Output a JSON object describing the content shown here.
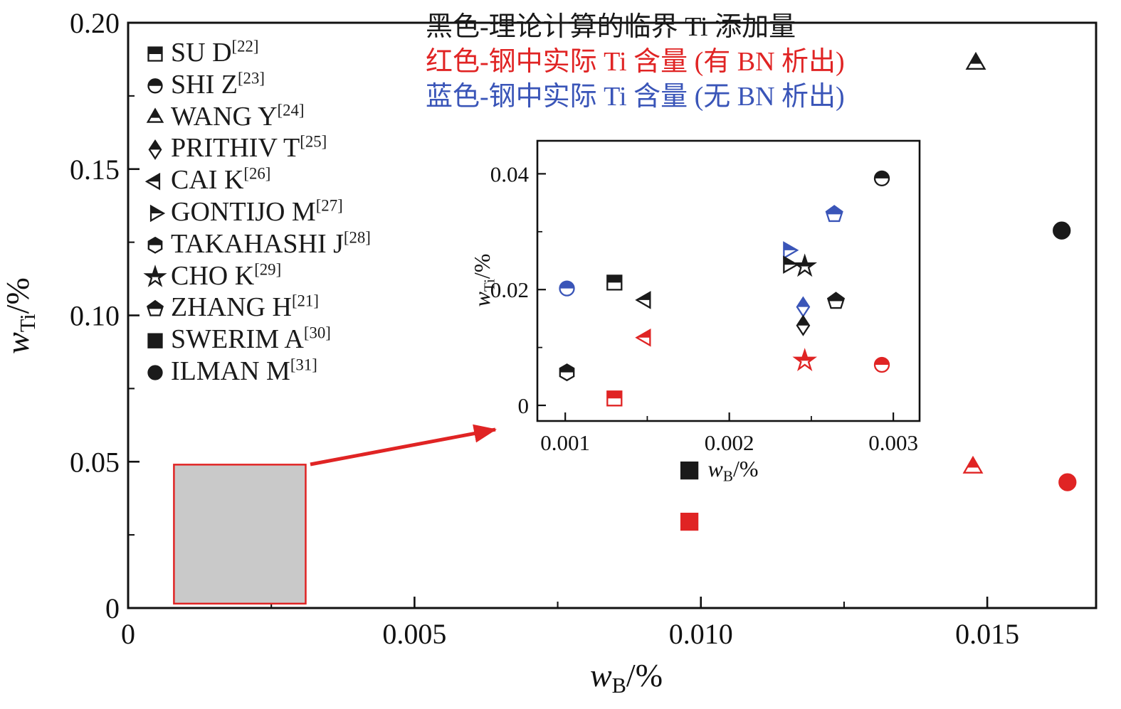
{
  "annotations": [
    {
      "text": "黑色-理论计算的临界 Ti 添加量",
      "color": "#1a1a1a"
    },
    {
      "text": "红色-钢中实际 Ti 含量 (有 BN 析出)",
      "color": "#e02424"
    },
    {
      "text": "蓝色-钢中实际 Ti 含量 (无 BN 析出)",
      "color": "#3a55b8"
    }
  ],
  "legend": {
    "items": [
      {
        "label": "SU D",
        "ref": "[22]",
        "shape": "square",
        "fill": "half"
      },
      {
        "label": "SHI Z",
        "ref": "[23]",
        "shape": "circle",
        "fill": "half"
      },
      {
        "label": "WANG Y",
        "ref": "[24]",
        "shape": "triangle-up",
        "fill": "half"
      },
      {
        "label": "PRITHIV T",
        "ref": "[25]",
        "shape": "diamond",
        "fill": "half"
      },
      {
        "label": "CAI K",
        "ref": "[26]",
        "shape": "triangle-left",
        "fill": "half"
      },
      {
        "label": "GONTIJO M",
        "ref": "[27]",
        "shape": "triangle-right",
        "fill": "half"
      },
      {
        "label": "TAKAHASHI J",
        "ref": "[28]",
        "shape": "hexagon",
        "fill": "half"
      },
      {
        "label": "CHO K",
        "ref": "[29]",
        "shape": "star",
        "fill": "half"
      },
      {
        "label": "ZHANG H",
        "ref": "[21]",
        "shape": "pentagon",
        "fill": "half"
      },
      {
        "label": "SWERIM A",
        "ref": "[30]",
        "shape": "square",
        "fill": "full"
      },
      {
        "label": "ILMAN M",
        "ref": "[31]",
        "shape": "circle",
        "fill": "full"
      }
    ]
  },
  "colors": {
    "black": "#1a1a1a",
    "red": "#e02424",
    "blue": "#3a55b8",
    "frame": "#111111",
    "zoom_fill": "#c9c9c9"
  },
  "chart_data": {
    "type": "scatter",
    "xlabel": "wB/%",
    "ylabel": "wTi/%",
    "xlabel_parts": {
      "base": "w",
      "sub": "B",
      "unit": "/%"
    },
    "ylabel_parts": {
      "base": "w",
      "sub": "Ti",
      "unit": "/%"
    },
    "color_key": {
      "black": "理论计算的临界 Ti 添加量",
      "red": "钢中实际 Ti 含量 (有 BN 析出)",
      "blue": "钢中实际 Ti 含量 (无 BN 析出)"
    },
    "main": {
      "xlim": [
        0,
        0.0169
      ],
      "ylim": [
        0,
        0.2
      ],
      "xtick_values": [
        0,
        0.005,
        0.01,
        0.015
      ],
      "xtick_labels": [
        "0",
        "0.005",
        "0.010",
        "0.015"
      ],
      "ytick_values": [
        0,
        0.05,
        0.1,
        0.15,
        0.2
      ],
      "ytick_labels": [
        "0",
        "0.05",
        "0.10",
        "0.15",
        "0.20"
      ],
      "xminor": [
        0.0025,
        0.0075,
        0.0125
      ],
      "yminor": [
        0.025,
        0.075,
        0.125,
        0.175
      ],
      "points": [
        {
          "shape": "triangle-up",
          "fill": "half",
          "color": "black",
          "x": 0.0148,
          "y": 0.186
        },
        {
          "shape": "circle",
          "fill": "full",
          "color": "black",
          "x": 0.0163,
          "y": 0.129
        },
        {
          "shape": "square",
          "fill": "full",
          "color": "black",
          "x": 0.0098,
          "y": 0.047
        },
        {
          "shape": "triangle-up",
          "fill": "half",
          "color": "red",
          "x": 0.01475,
          "y": 0.048
        },
        {
          "shape": "circle",
          "fill": "full",
          "color": "red",
          "x": 0.0164,
          "y": 0.043
        },
        {
          "shape": "square",
          "fill": "full",
          "color": "red",
          "x": 0.0098,
          "y": 0.0295
        }
      ],
      "zoom_region": {
        "x0": 0.0008,
        "x1": 0.0031,
        "y0": 0.0015,
        "y1": 0.049
      }
    },
    "inset": {
      "xlim": [
        0.00083,
        0.00316
      ],
      "ylim": [
        -0.0027,
        0.0457
      ],
      "xtick_values": [
        0.001,
        0.002,
        0.003
      ],
      "xtick_labels": [
        "0.001",
        "0.002",
        "0.003"
      ],
      "ytick_values": [
        0,
        0.02,
        0.04
      ],
      "ytick_labels": [
        "0",
        "0.02",
        "0.04"
      ],
      "xminor": [
        0.0015,
        0.0025
      ],
      "yminor": [
        0.01,
        0.03
      ],
      "points": [
        {
          "shape": "circle",
          "fill": "half",
          "color": "blue",
          "x": 0.00101,
          "y": 0.0202
        },
        {
          "shape": "hexagon",
          "fill": "half",
          "color": "black",
          "x": 0.00101,
          "y": 0.0057
        },
        {
          "shape": "square",
          "fill": "half",
          "color": "black",
          "x": 0.0013,
          "y": 0.0212
        },
        {
          "shape": "square",
          "fill": "half",
          "color": "red",
          "x": 0.0013,
          "y": 0.0012
        },
        {
          "shape": "triangle-left",
          "fill": "half",
          "color": "black",
          "x": 0.00149,
          "y": 0.0182
        },
        {
          "shape": "triangle-left",
          "fill": "half",
          "color": "red",
          "x": 0.00149,
          "y": 0.0117
        },
        {
          "shape": "triangle-right",
          "fill": "half",
          "color": "blue",
          "x": 0.00236,
          "y": 0.0268
        },
        {
          "shape": "triangle-right",
          "fill": "half",
          "color": "black",
          "x": 0.00236,
          "y": 0.0243
        },
        {
          "shape": "star",
          "fill": "half",
          "color": "black",
          "x": 0.00246,
          "y": 0.024
        },
        {
          "shape": "diamond",
          "fill": "half",
          "color": "blue",
          "x": 0.00245,
          "y": 0.017
        },
        {
          "shape": "diamond",
          "fill": "half",
          "color": "black",
          "x": 0.00245,
          "y": 0.0138
        },
        {
          "shape": "star",
          "fill": "half",
          "color": "red",
          "x": 0.00246,
          "y": 0.0077
        },
        {
          "shape": "pentagon",
          "fill": "half",
          "color": "blue",
          "x": 0.00264,
          "y": 0.033
        },
        {
          "shape": "pentagon",
          "fill": "half",
          "color": "black",
          "x": 0.00265,
          "y": 0.018
        },
        {
          "shape": "circle",
          "fill": "half",
          "color": "black",
          "x": 0.00293,
          "y": 0.0392
        },
        {
          "shape": "circle",
          "fill": "half",
          "color": "red",
          "x": 0.00293,
          "y": 0.007
        }
      ]
    }
  }
}
